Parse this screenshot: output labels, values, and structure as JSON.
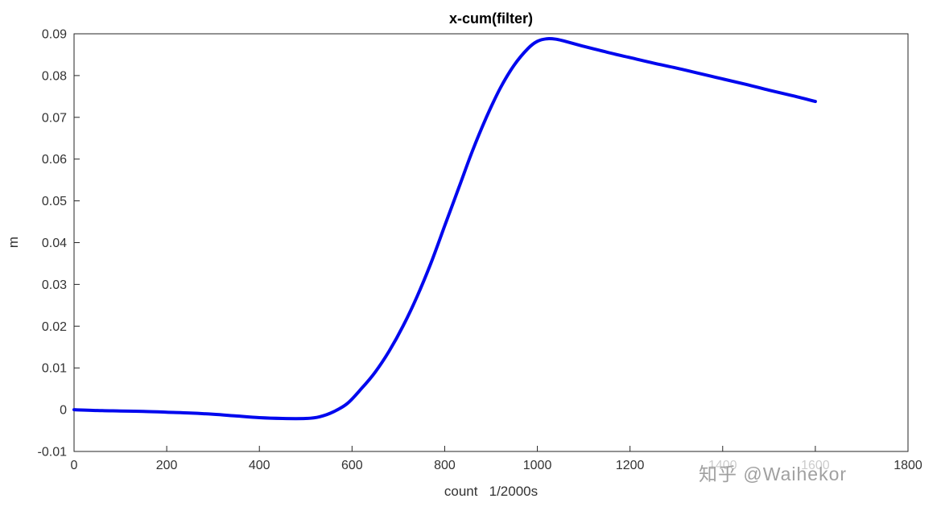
{
  "chart_data": {
    "type": "line",
    "title": "x-cum(filter)",
    "xlabel": "count   1/2000s",
    "ylabel": "m",
    "xlim": [
      0,
      1800
    ],
    "ylim": [
      -0.01,
      0.09
    ],
    "x_ticks": [
      0,
      200,
      400,
      600,
      800,
      1000,
      1200,
      1400,
      1600,
      1800
    ],
    "y_ticks": [
      -0.01,
      0,
      0.01,
      0.02,
      0.03,
      0.04,
      0.05,
      0.06,
      0.07,
      0.08,
      0.09
    ],
    "grid": false,
    "legend": "none",
    "line_color": "#0008EE",
    "line_width": 4,
    "series": [
      {
        "name": "x-cum(filter)",
        "x": [
          0,
          50,
          100,
          150,
          200,
          250,
          300,
          350,
          400,
          450,
          500,
          530,
          560,
          590,
          620,
          650,
          680,
          710,
          740,
          770,
          800,
          830,
          860,
          890,
          920,
          950,
          980,
          1000,
          1020,
          1040,
          1060,
          1100,
          1150,
          1200,
          1250,
          1300,
          1350,
          1400,
          1450,
          1500,
          1550,
          1600
        ],
        "y": [
          0,
          -0.0002,
          -0.0003,
          -0.0004,
          -0.0006,
          -0.0008,
          -0.0011,
          -0.0015,
          -0.0019,
          -0.0021,
          -0.0021,
          -0.0017,
          -0.0005,
          0.0015,
          0.005,
          0.009,
          0.014,
          0.02,
          0.027,
          0.035,
          0.044,
          0.053,
          0.062,
          0.07,
          0.077,
          0.0825,
          0.0865,
          0.0882,
          0.0888,
          0.0887,
          0.0882,
          0.087,
          0.0856,
          0.0843,
          0.083,
          0.0818,
          0.0805,
          0.0792,
          0.0779,
          0.0765,
          0.0752,
          0.0738
        ]
      }
    ]
  },
  "watermark": {
    "text": "知乎 @Waihekor"
  }
}
